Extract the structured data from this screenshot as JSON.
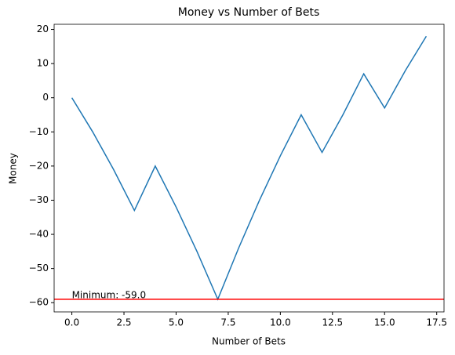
{
  "chart_data": {
    "type": "line",
    "title": "Money vs Number of Bets",
    "x_label": "Number of Bets",
    "y_label": "Money",
    "x": [
      0,
      1,
      2,
      3,
      4,
      5,
      6,
      7,
      8,
      9,
      10,
      11,
      12,
      13,
      14,
      15,
      16,
      17
    ],
    "series": [
      {
        "name": "Money",
        "color": "#1f77b4",
        "values": [
          0,
          -10,
          -21,
          -33,
          -20,
          -32,
          -45,
          -59,
          -44,
          -30,
          -17,
          -5,
          -16,
          -5,
          7,
          -3,
          8,
          18
        ]
      }
    ],
    "xlim": [
      -0.85,
      17.85
    ],
    "ylim": [
      -62.7,
      21.5
    ],
    "xticks": [
      {
        "value": 0,
        "label": "0.0"
      },
      {
        "value": 2.5,
        "label": "2.5"
      },
      {
        "value": 5,
        "label": "5.0"
      },
      {
        "value": 7.5,
        "label": "7.5"
      },
      {
        "value": 10,
        "label": "10.0"
      },
      {
        "value": 12.5,
        "label": "12.5"
      },
      {
        "value": 15,
        "label": "15.0"
      },
      {
        "value": 17.5,
        "label": "17.5"
      }
    ],
    "yticks": [
      {
        "value": -60,
        "label": "−60"
      },
      {
        "value": -50,
        "label": "−50"
      },
      {
        "value": -40,
        "label": "−40"
      },
      {
        "value": -30,
        "label": "−30"
      },
      {
        "value": -20,
        "label": "−20"
      },
      {
        "value": -10,
        "label": "−10"
      },
      0,
      10,
      20
    ],
    "hline": {
      "value": -59,
      "color": "#ff0000"
    },
    "annotation": {
      "text": "Minimum: -59.0",
      "x": 0,
      "y": -59
    }
  }
}
